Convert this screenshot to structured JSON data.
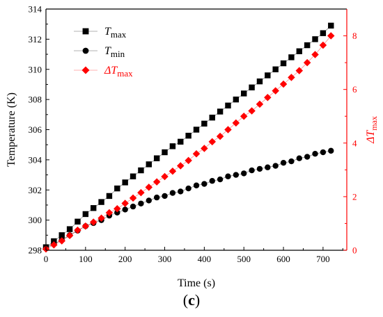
{
  "panel_label": {
    "open": "(",
    "letter": "c",
    "close": ")"
  },
  "chart_data": {
    "type": "scatter",
    "xlabel": "Time (s)",
    "ylabel_left": "Temperature (K)",
    "ylabel_right": {
      "delta": "ΔT",
      "sub": "max"
    },
    "xlim": [
      0,
      760
    ],
    "ylim_left": [
      298,
      314
    ],
    "ylim_right": [
      0,
      9
    ],
    "xticks": [
      0,
      100,
      200,
      300,
      400,
      500,
      600,
      700
    ],
    "yticks_left": [
      298,
      300,
      302,
      304,
      306,
      308,
      310,
      312,
      314
    ],
    "yticks_right": [
      0,
      2,
      4,
      6,
      8
    ],
    "legend_position": "top-left",
    "colors": {
      "left_axis": "#000000",
      "right_axis": "#ff0000",
      "tmax": "#000000",
      "tmin": "#000000",
      "dtmax": "#ff0000"
    },
    "series": [
      {
        "key": "tmax",
        "label": "T",
        "sub": "max",
        "axis": "left",
        "marker": "square",
        "x": [
          0,
          20,
          40,
          60,
          80,
          100,
          120,
          140,
          160,
          180,
          200,
          220,
          240,
          260,
          280,
          300,
          320,
          340,
          360,
          380,
          400,
          420,
          440,
          460,
          480,
          500,
          520,
          540,
          560,
          580,
          600,
          620,
          640,
          660,
          680,
          700,
          720
        ],
        "y": [
          298.2,
          298.6,
          299.0,
          299.4,
          299.9,
          300.4,
          300.8,
          301.2,
          301.6,
          302.1,
          302.5,
          302.9,
          303.3,
          303.7,
          304.1,
          304.5,
          304.9,
          305.2,
          305.6,
          306.0,
          306.4,
          306.8,
          307.2,
          307.6,
          308.0,
          308.4,
          308.8,
          309.2,
          309.6,
          310.0,
          310.4,
          310.8,
          311.2,
          311.6,
          312.0,
          312.4,
          312.9
        ]
      },
      {
        "key": "tmin",
        "label": "T",
        "sub": "min",
        "axis": "left",
        "marker": "circle",
        "x": [
          0,
          20,
          40,
          60,
          80,
          100,
          120,
          140,
          160,
          180,
          200,
          220,
          240,
          260,
          280,
          300,
          320,
          340,
          360,
          380,
          400,
          420,
          440,
          460,
          480,
          500,
          520,
          540,
          560,
          580,
          600,
          620,
          640,
          660,
          680,
          700,
          720
        ],
        "y": [
          298.2,
          298.4,
          298.7,
          299.0,
          299.3,
          299.6,
          299.8,
          300.0,
          300.3,
          300.5,
          300.7,
          300.9,
          301.1,
          301.3,
          301.5,
          301.6,
          301.8,
          301.9,
          302.1,
          302.3,
          302.4,
          302.6,
          302.7,
          302.9,
          303.0,
          303.1,
          303.3,
          303.4,
          303.5,
          303.6,
          303.8,
          303.9,
          304.1,
          304.2,
          304.4,
          304.5,
          304.6
        ]
      },
      {
        "key": "dtmax",
        "label": "ΔT",
        "sub": "max",
        "axis": "right",
        "marker": "diamond",
        "x": [
          0,
          20,
          40,
          60,
          80,
          100,
          120,
          140,
          160,
          180,
          200,
          220,
          240,
          260,
          280,
          300,
          320,
          340,
          360,
          380,
          400,
          420,
          440,
          460,
          480,
          500,
          520,
          540,
          560,
          580,
          600,
          620,
          640,
          660,
          680,
          700,
          720
        ],
        "y": [
          0.05,
          0.2,
          0.35,
          0.55,
          0.75,
          0.9,
          1.05,
          1.2,
          1.4,
          1.55,
          1.75,
          1.95,
          2.15,
          2.35,
          2.55,
          2.75,
          2.95,
          3.15,
          3.35,
          3.6,
          3.8,
          4.05,
          4.25,
          4.5,
          4.75,
          5.0,
          5.2,
          5.45,
          5.7,
          5.95,
          6.2,
          6.45,
          6.7,
          7.0,
          7.3,
          7.65,
          8.0
        ]
      }
    ]
  }
}
